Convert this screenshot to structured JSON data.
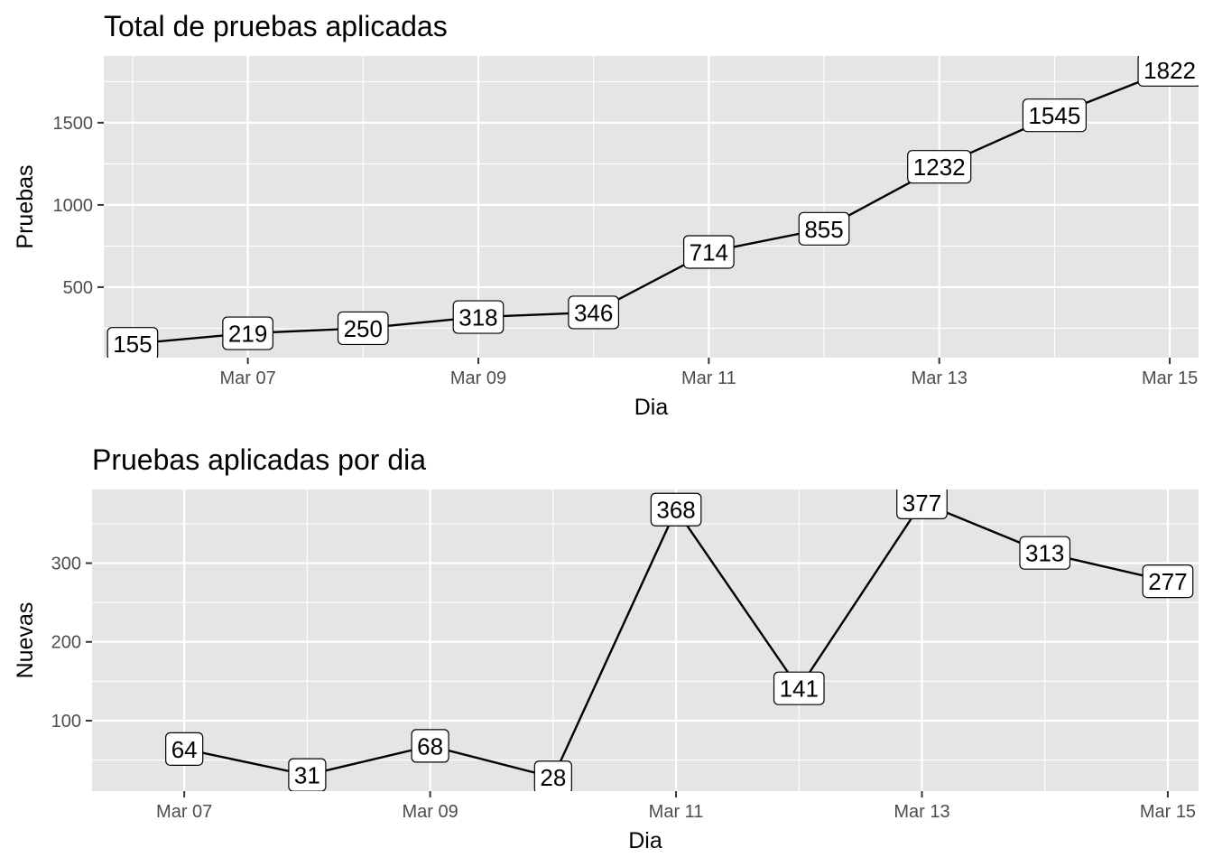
{
  "chart_data": [
    {
      "type": "line",
      "title": "Total de pruebas aplicadas",
      "xlabel": "Dia",
      "ylabel": "Pruebas",
      "x": [
        "2020-03-06",
        "2020-03-07",
        "2020-03-08",
        "2020-03-09",
        "2020-03-10",
        "2020-03-11",
        "2020-03-12",
        "2020-03-13",
        "2020-03-14",
        "2020-03-15"
      ],
      "series": [
        {
          "values": [
            155,
            219,
            250,
            318,
            346,
            714,
            855,
            1232,
            1545,
            1822
          ]
        }
      ],
      "data_labels": [
        "155",
        "219",
        "250",
        "318",
        "346",
        "714",
        "855",
        "1232",
        "1545",
        "1822"
      ],
      "x_ticks": [
        "Mar 07",
        "Mar 09",
        "Mar 11",
        "Mar 13",
        "Mar 15"
      ],
      "x_tick_values": [
        "2020-03-07",
        "2020-03-09",
        "2020-03-11",
        "2020-03-13",
        "2020-03-15"
      ],
      "y_ticks": [
        "500",
        "1000",
        "1500"
      ],
      "y_tick_values": [
        500,
        1000,
        1500
      ],
      "xlim": [
        "2020-03-05 18:00",
        "2020-03-15 06:00"
      ],
      "ylim": [
        71,
        1906
      ],
      "grid": true,
      "background": "#e5e5e5",
      "line_color": "#000000"
    },
    {
      "type": "line",
      "title": "Pruebas aplicadas por dia",
      "xlabel": "Dia",
      "ylabel": "Nuevas",
      "x": [
        "2020-03-07",
        "2020-03-08",
        "2020-03-09",
        "2020-03-10",
        "2020-03-11",
        "2020-03-12",
        "2020-03-13",
        "2020-03-14",
        "2020-03-15"
      ],
      "series": [
        {
          "values": [
            64,
            31,
            68,
            28,
            368,
            141,
            377,
            313,
            277
          ]
        }
      ],
      "data_labels": [
        "64",
        "31",
        "68",
        "28",
        "368",
        "141",
        "377",
        "313",
        "277"
      ],
      "x_ticks": [
        "Mar 07",
        "Mar 09",
        "Mar 11",
        "Mar 13",
        "Mar 15"
      ],
      "x_tick_values": [
        "2020-03-07",
        "2020-03-09",
        "2020-03-11",
        "2020-03-13",
        "2020-03-15"
      ],
      "y_ticks": [
        "100",
        "200",
        "300"
      ],
      "y_tick_values": [
        100,
        200,
        300
      ],
      "xlim": [
        "2020-03-06 06:00",
        "2020-03-15 06:00"
      ],
      "ylim": [
        10.5,
        393.5
      ],
      "grid": true,
      "background": "#e5e5e5",
      "line_color": "#000000"
    }
  ]
}
